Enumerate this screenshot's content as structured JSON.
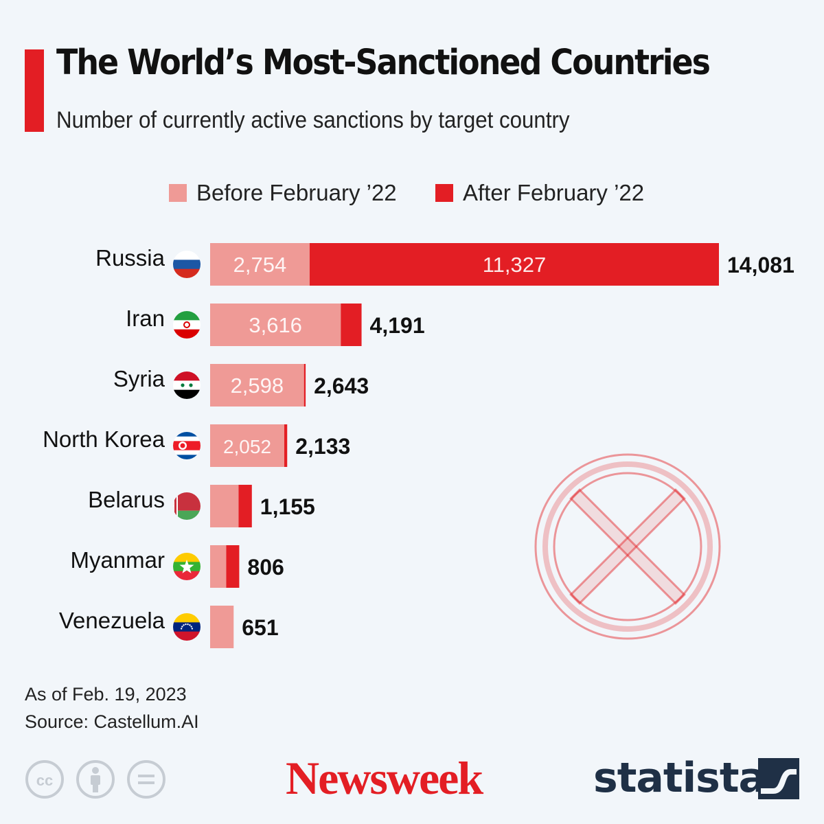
{
  "header": {
    "title": "The World’s Most-Sanctioned Countries",
    "subtitle": "Number of currently active sanctions by target country"
  },
  "legend": [
    {
      "label": "Before February ’22",
      "color": "#ef9a96"
    },
    {
      "label": "After February ’22",
      "color": "#e31e24"
    }
  ],
  "chart_data": {
    "type": "bar",
    "orientation": "horizontal",
    "stacked": true,
    "title": "The World’s Most-Sanctioned Countries",
    "subtitle": "Number of currently active sanctions by target country",
    "categories": [
      "Russia",
      "Iran",
      "Syria",
      "North Korea",
      "Belarus",
      "Myanmar",
      "Venezuela"
    ],
    "series": [
      {
        "name": "Before February ’22",
        "color": "#ef9a96",
        "values": [
          2754,
          3616,
          2598,
          2052,
          788,
          446,
          651
        ]
      },
      {
        "name": "After February ’22",
        "color": "#e31e24",
        "values": [
          11327,
          575,
          45,
          81,
          367,
          360,
          0
        ]
      }
    ],
    "segment_labels": [
      [
        "2,754",
        "11,327"
      ],
      [
        "3,616",
        null
      ],
      [
        "2,598",
        null
      ],
      [
        "2,052",
        null
      ],
      [
        null,
        null
      ],
      [
        null,
        null
      ],
      [
        null,
        null
      ]
    ],
    "totals": [
      14081,
      4191,
      2643,
      2133,
      1155,
      806,
      651
    ],
    "total_labels": [
      "14,081",
      "4,191",
      "2,643",
      "2,133",
      "1,155",
      "806",
      "651"
    ],
    "xlim": [
      0,
      14081
    ],
    "grid": false,
    "legend_position": "top"
  },
  "flags": [
    {
      "country": "Russia",
      "icon": "russia-flag-icon"
    },
    {
      "country": "Iran",
      "icon": "iran-flag-icon"
    },
    {
      "country": "Syria",
      "icon": "syria-flag-icon"
    },
    {
      "country": "North Korea",
      "icon": "north-korea-flag-icon"
    },
    {
      "country": "Belarus",
      "icon": "belarus-flag-icon"
    },
    {
      "country": "Myanmar",
      "icon": "myanmar-flag-icon"
    },
    {
      "country": "Venezuela",
      "icon": "venezuela-flag-icon"
    }
  ],
  "decoration": {
    "icon": "x-circle-icon",
    "color": "#e31e24"
  },
  "footer": {
    "date_note": "As of Feb. 19, 2023",
    "source": "Source: Castellum.AI",
    "license_icons": [
      "cc-icon",
      "attribution-icon",
      "no-derivatives-icon"
    ],
    "brand_newsweek": "Newsweek",
    "brand_statista": "statista",
    "statista_icon": "statista-logo-icon"
  }
}
